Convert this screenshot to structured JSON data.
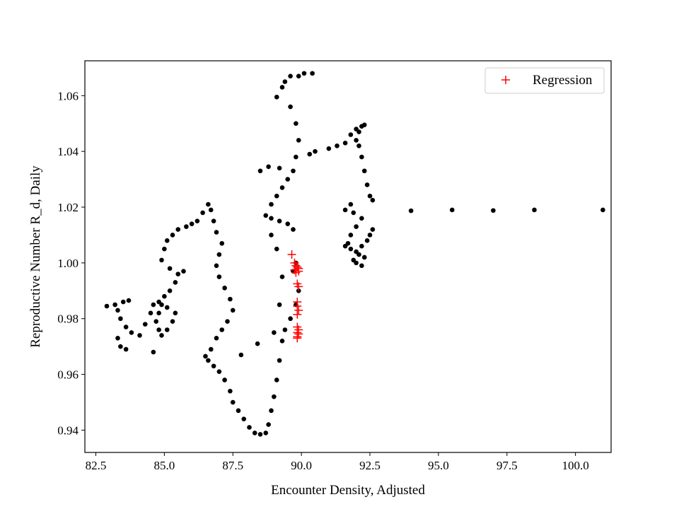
{
  "chart_data": {
    "type": "scatter",
    "title": "",
    "xlabel": "Encounter Density, Adjusted",
    "ylabel": "Reproductive Number R_d, Daily",
    "xlim": [
      82.1,
      101.3
    ],
    "ylim": [
      0.932,
      1.0725
    ],
    "xticks": [
      82.5,
      85.0,
      87.5,
      90.0,
      92.5,
      95.0,
      97.5,
      100.0
    ],
    "xtick_labels": [
      "82.5",
      "85.0",
      "87.5",
      "90.0",
      "92.5",
      "95.0",
      "97.5",
      "100.0"
    ],
    "yticks": [
      0.94,
      0.96,
      0.98,
      1.0,
      1.02,
      1.04,
      1.06
    ],
    "ytick_labels": [
      "0.94",
      "0.96",
      "0.98",
      "1.00",
      "1.02",
      "1.04",
      "1.06"
    ],
    "grid": false,
    "legend": {
      "position": "top-right",
      "entries": [
        {
          "label": "Regression",
          "marker": "+",
          "color": "#ff0000"
        }
      ]
    },
    "colors": {
      "data_points": "#000000",
      "regression": "#ff0000"
    },
    "series": [
      {
        "marker": "circle",
        "color": "#000000",
        "points": [
          [
            101.0,
            1.019
          ],
          [
            98.5,
            1.019
          ],
          [
            97.0,
            1.0188
          ],
          [
            95.5,
            1.019
          ],
          [
            94.0,
            1.0187
          ],
          [
            92.6,
            1.0225
          ],
          [
            92.5,
            1.024
          ],
          [
            92.4,
            1.028
          ],
          [
            92.3,
            1.033
          ],
          [
            92.2,
            1.038
          ],
          [
            92.1,
            1.042
          ],
          [
            92.0,
            1.044
          ],
          [
            92.1,
            1.047
          ],
          [
            92.3,
            1.0495
          ],
          [
            92.2,
            1.049
          ],
          [
            92.0,
            1.048
          ],
          [
            91.8,
            1.046
          ],
          [
            91.6,
            1.043
          ],
          [
            91.3,
            1.042
          ],
          [
            91.0,
            1.041
          ],
          [
            92.6,
            1.012
          ],
          [
            92.5,
            1.01
          ],
          [
            92.4,
            1.008
          ],
          [
            92.2,
            1.006
          ],
          [
            92.0,
            1.004
          ],
          [
            91.8,
            1.005
          ],
          [
            91.6,
            1.006
          ],
          [
            92.2,
            0.999
          ],
          [
            92.0,
            1.0
          ],
          [
            91.9,
            1.001
          ],
          [
            92.1,
            1.003
          ],
          [
            92.3,
            1.002
          ],
          [
            91.7,
            1.007
          ],
          [
            91.8,
            1.01
          ],
          [
            92.0,
            1.013
          ],
          [
            92.2,
            1.016
          ],
          [
            91.9,
            1.018
          ],
          [
            91.6,
            1.019
          ],
          [
            91.8,
            1.021
          ],
          [
            90.4,
            1.068
          ],
          [
            90.1,
            1.068
          ],
          [
            89.9,
            1.067
          ],
          [
            89.6,
            1.067
          ],
          [
            89.4,
            1.065
          ],
          [
            89.3,
            1.063
          ],
          [
            89.1,
            1.0595
          ],
          [
            89.6,
            1.056
          ],
          [
            89.8,
            1.05
          ],
          [
            89.9,
            1.044
          ],
          [
            89.8,
            1.038
          ],
          [
            89.7,
            1.033
          ],
          [
            89.5,
            1.03
          ],
          [
            89.3,
            1.027
          ],
          [
            89.1,
            1.024
          ],
          [
            88.9,
            1.021
          ],
          [
            88.7,
            1.017
          ],
          [
            88.9,
            1.016
          ],
          [
            89.2,
            1.015
          ],
          [
            89.5,
            1.014
          ],
          [
            89.7,
            1.012
          ],
          [
            90.5,
            1.04
          ],
          [
            90.3,
            1.039
          ],
          [
            89.2,
            1.034
          ],
          [
            88.8,
            1.0345
          ],
          [
            88.5,
            1.033
          ],
          [
            89.8,
            1.0
          ],
          [
            89.7,
            0.997
          ],
          [
            89.9,
            0.99
          ],
          [
            89.8,
            0.985
          ],
          [
            89.6,
            0.98
          ],
          [
            89.4,
            0.976
          ],
          [
            89.3,
            0.972
          ],
          [
            89.2,
            0.965
          ],
          [
            89.1,
            0.958
          ],
          [
            89.0,
            0.952
          ],
          [
            88.9,
            0.947
          ],
          [
            88.8,
            0.942
          ],
          [
            88.7,
            0.939
          ],
          [
            88.5,
            0.9385
          ],
          [
            88.3,
            0.939
          ],
          [
            88.1,
            0.941
          ],
          [
            87.9,
            0.944
          ],
          [
            87.7,
            0.947
          ],
          [
            87.5,
            0.95
          ],
          [
            87.4,
            0.954
          ],
          [
            87.2,
            0.958
          ],
          [
            87.0,
            0.961
          ],
          [
            86.8,
            0.963
          ],
          [
            86.6,
            0.965
          ],
          [
            86.5,
            0.9665
          ],
          [
            86.7,
            0.969
          ],
          [
            86.9,
            0.973
          ],
          [
            87.1,
            0.976
          ],
          [
            87.3,
            0.979
          ],
          [
            87.5,
            0.983
          ],
          [
            87.4,
            0.987
          ],
          [
            87.2,
            0.991
          ],
          [
            87.0,
            0.995
          ],
          [
            86.9,
            0.999
          ],
          [
            87.0,
            1.003
          ],
          [
            87.1,
            1.007
          ],
          [
            86.9,
            1.011
          ],
          [
            86.8,
            1.015
          ],
          [
            86.7,
            1.019
          ],
          [
            86.6,
            1.021
          ],
          [
            86.4,
            1.018
          ],
          [
            86.2,
            1.015
          ],
          [
            86.0,
            1.014
          ],
          [
            85.8,
            1.013
          ],
          [
            85.5,
            1.012
          ],
          [
            85.3,
            1.01
          ],
          [
            85.1,
            1.008
          ],
          [
            85.0,
            1.005
          ],
          [
            84.9,
            1.001
          ],
          [
            85.2,
            0.998
          ],
          [
            85.5,
            0.996
          ],
          [
            85.7,
            0.997
          ],
          [
            85.4,
            0.993
          ],
          [
            85.2,
            0.99
          ],
          [
            85.0,
            0.988
          ],
          [
            84.9,
            0.985
          ],
          [
            84.8,
            0.982
          ],
          [
            84.7,
            0.979
          ],
          [
            84.8,
            0.976
          ],
          [
            84.9,
            0.974
          ],
          [
            85.1,
            0.976
          ],
          [
            85.3,
            0.979
          ],
          [
            85.4,
            0.982
          ],
          [
            85.1,
            0.984
          ],
          [
            84.8,
            0.986
          ],
          [
            84.6,
            0.985
          ],
          [
            84.5,
            0.982
          ],
          [
            84.3,
            0.978
          ],
          [
            84.1,
            0.974
          ],
          [
            83.8,
            0.975
          ],
          [
            83.6,
            0.977
          ],
          [
            83.4,
            0.98
          ],
          [
            83.3,
            0.983
          ],
          [
            83.5,
            0.986
          ],
          [
            83.7,
            0.9865
          ],
          [
            83.2,
            0.985
          ],
          [
            82.9,
            0.9845
          ],
          [
            83.3,
            0.973
          ],
          [
            83.4,
            0.97
          ],
          [
            83.6,
            0.969
          ],
          [
            84.6,
            0.968
          ],
          [
            87.8,
            0.967
          ],
          [
            88.4,
            0.971
          ],
          [
            89.0,
            0.975
          ],
          [
            89.2,
            0.985
          ],
          [
            89.3,
            0.995
          ],
          [
            89.1,
            1.005
          ],
          [
            88.9,
            1.01
          ]
        ]
      },
      {
        "name": "Regression",
        "marker": "+",
        "color": "#ff0000",
        "points": [
          [
            89.65,
            1.003
          ],
          [
            89.75,
            1.0
          ],
          [
            89.8,
            0.999
          ],
          [
            89.85,
            0.9985
          ],
          [
            89.9,
            0.998
          ],
          [
            89.75,
            0.9975
          ],
          [
            89.9,
            0.997
          ],
          [
            89.8,
            0.9965
          ],
          [
            89.85,
            0.9925
          ],
          [
            89.9,
            0.9915
          ],
          [
            89.85,
            0.986
          ],
          [
            89.85,
            0.9845
          ],
          [
            89.9,
            0.983
          ],
          [
            89.85,
            0.9815
          ],
          [
            89.85,
            0.977
          ],
          [
            89.9,
            0.976
          ],
          [
            89.85,
            0.975
          ],
          [
            89.9,
            0.9745
          ],
          [
            89.85,
            0.9735
          ],
          [
            89.85,
            0.973
          ]
        ]
      }
    ]
  }
}
